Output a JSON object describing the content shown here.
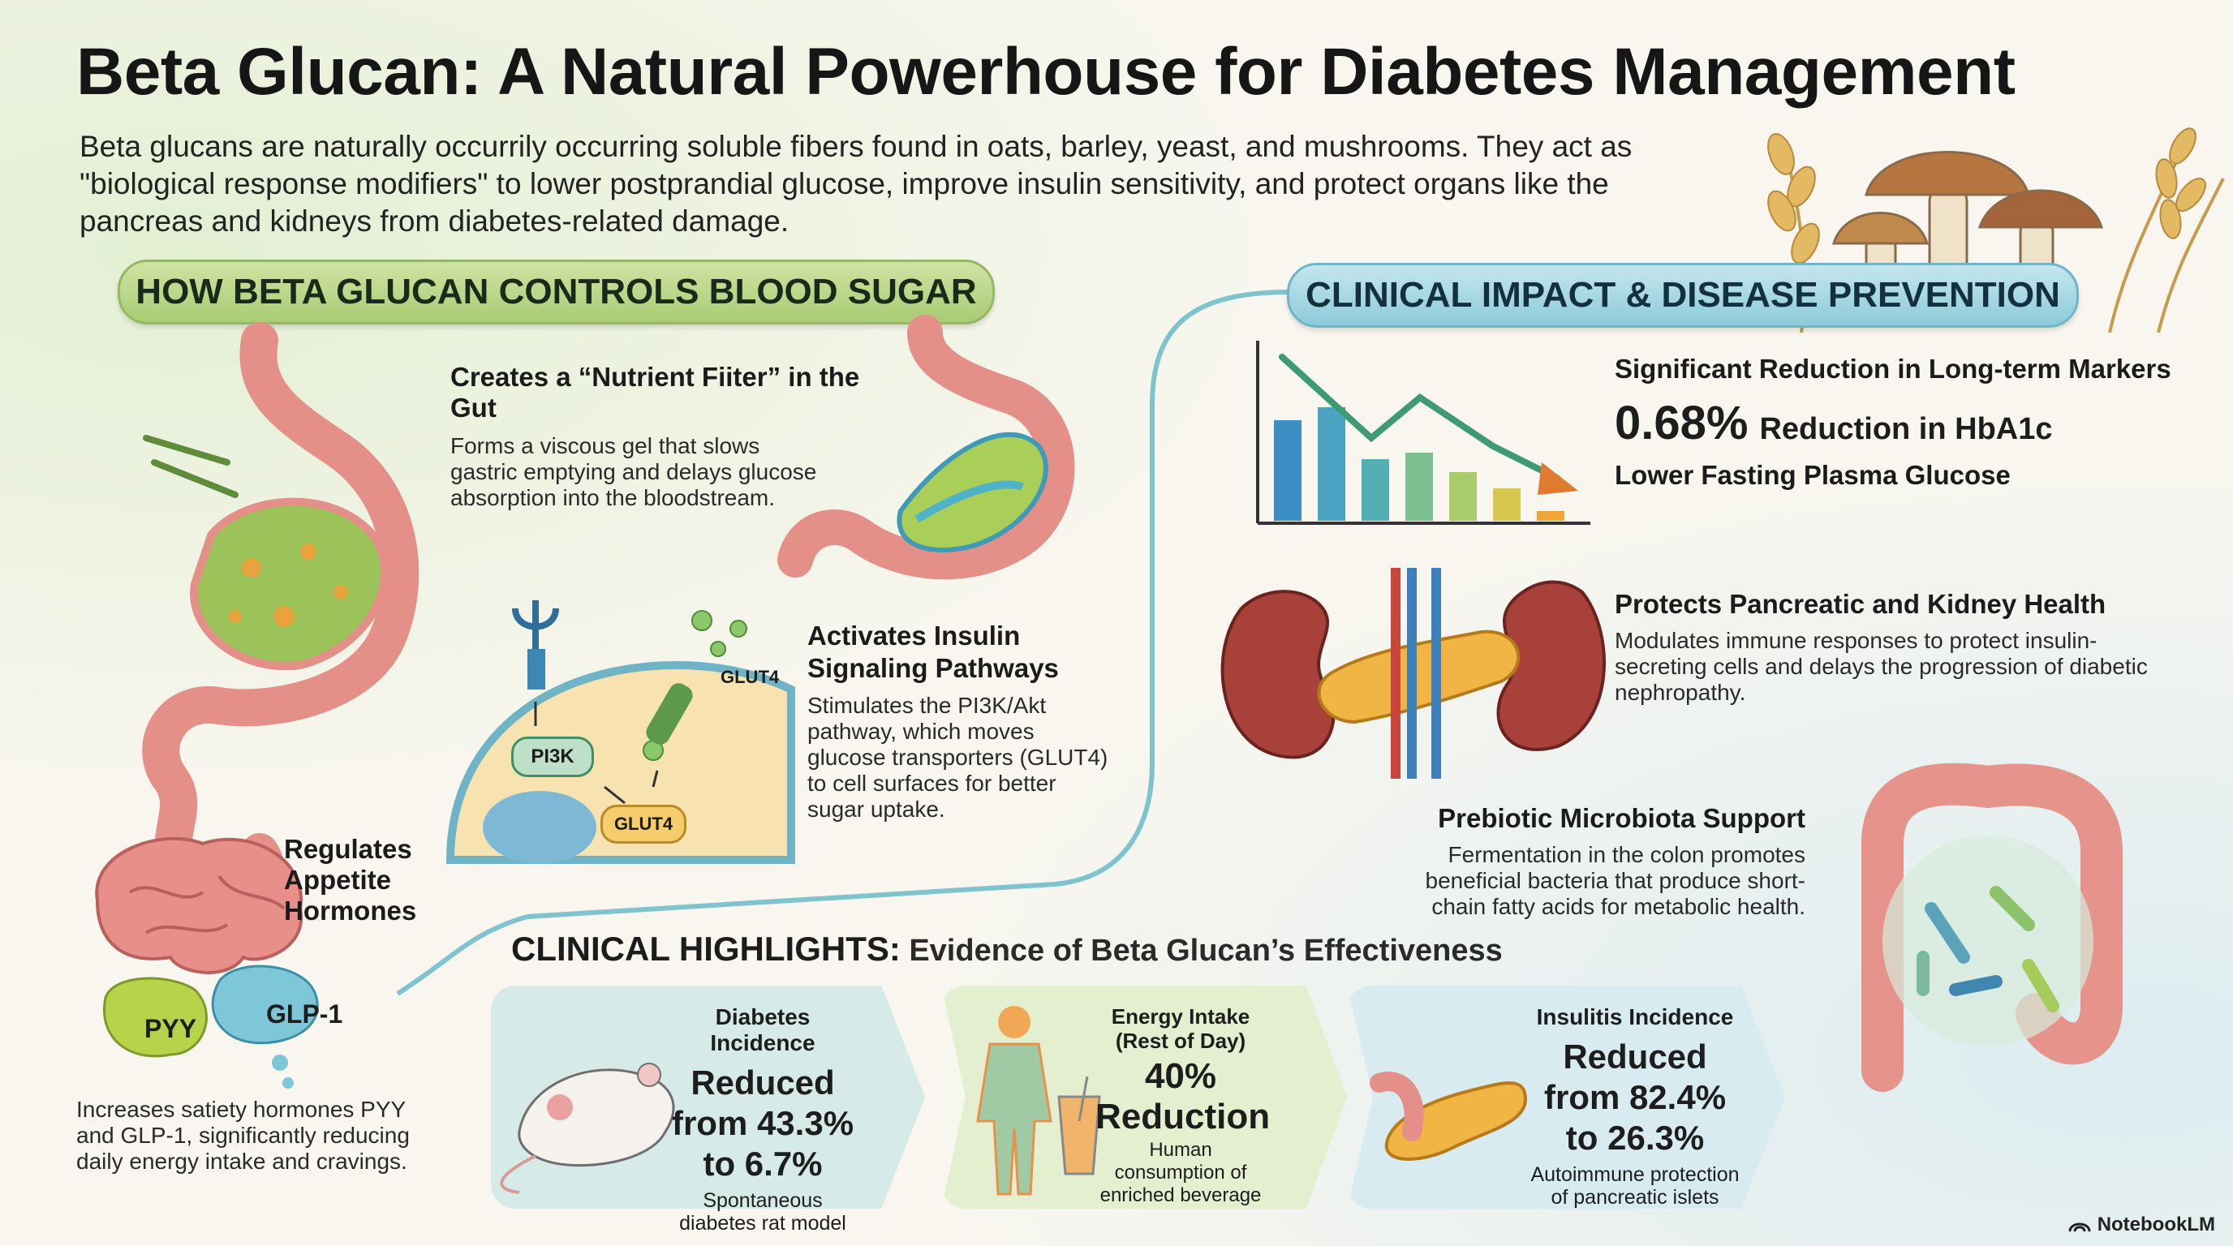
{
  "header": {
    "title": "Beta Glucan: A Natural Powerhouse for Diabetes Management",
    "intro": "Beta glucans are naturally occurrily occurring soluble fibers found in oats, barley, yeast, and mushrooms. They act as \"biological response modifiers\" to lower postprandial glucose, improve insulin sensitivity, and protect organs like the pancreas and kidneys from diabetes-related damage."
  },
  "left_section": {
    "heading": "HOW BETA GLUCAN CONTROLS BLOOD SUGAR",
    "filter": {
      "title": "Creates a “Nutrient Fiiter” in the Gut",
      "body": "Forms a viscous gel that slows gastric emptying and delays glucose absorption into the bloodstream."
    },
    "insulin": {
      "title": "Activates Insulin Signaling Pathways",
      "body": "Stimulates the PI3K/Akt pathway, which moves glucose transporters (GLUT4) to cell surfaces for better sugar uptake.",
      "labels": {
        "pi3k": "PI3K",
        "glut4_box": "GLUT4",
        "glut4_tag": "GLUT4"
      }
    },
    "appetite": {
      "title": "Regulates Appetite Hormones",
      "body": "Increases satiety hormones PYY and GLP-1, significantly reducing daily energy intake and cravings.",
      "labels": {
        "pyy": "PYY",
        "glp1": "GLP-1"
      }
    }
  },
  "right_section": {
    "heading": "CLINICAL IMPACT & DISEASE PREVENTION",
    "markers": {
      "title": "Significant Reduction in Long-term Markers",
      "value": "0.68%",
      "value_label": "Reduction in HbA1c",
      "sub": "Lower Fasting Plasma Glucose",
      "bar_levels": [
        0.62,
        0.7,
        0.38,
        0.42,
        0.3,
        0.2,
        0.06
      ],
      "bar_colors": [
        "#3b8fc4",
        "#4aa3c0",
        "#52b0b2",
        "#7cc08f",
        "#a8cc6a",
        "#d7c64f",
        "#f0a53a"
      ]
    },
    "organs": {
      "title": "Protects Pancreatic and Kidney Health",
      "body": "Modulates immune responses to protect insulin-secreting cells and delays the progression of diabetic nephropathy."
    },
    "microbiota": {
      "title": "Prebiotic Microbiota Support",
      "body": "Fermentation in the colon promotes beneficial bacteria that produce short-chain fatty acids for metabolic health."
    }
  },
  "highlights": {
    "heading_bold": "CLINICAL HIGHLIGHTS:",
    "heading_rest": "Evidence of Beta Glucan’s Effectiveness",
    "cards": [
      {
        "title": "Diabetes Incidence",
        "big": "Reduced from 43.3% to 6.7%",
        "note": "Spontaneous diabetes rat model",
        "bg": "#d6ebe8"
      },
      {
        "title": "Energy Intake (Rest of Day)",
        "big": "40% Reduction",
        "note": "Human consumption of enriched beverage",
        "bg": "#e4efcf"
      },
      {
        "title": "Insulitis Incidence",
        "big": "Reduced from 82.4% to 26.3%",
        "note": "Autoimmune protection of pancreatic islets",
        "bg": "#d8ebf0"
      }
    ]
  },
  "footer": {
    "brand": "NotebookLM"
  },
  "colors": {
    "green_pill": "#a9cc74",
    "blue_pill": "#8ccbd9",
    "connector": "#7fc3cf"
  }
}
